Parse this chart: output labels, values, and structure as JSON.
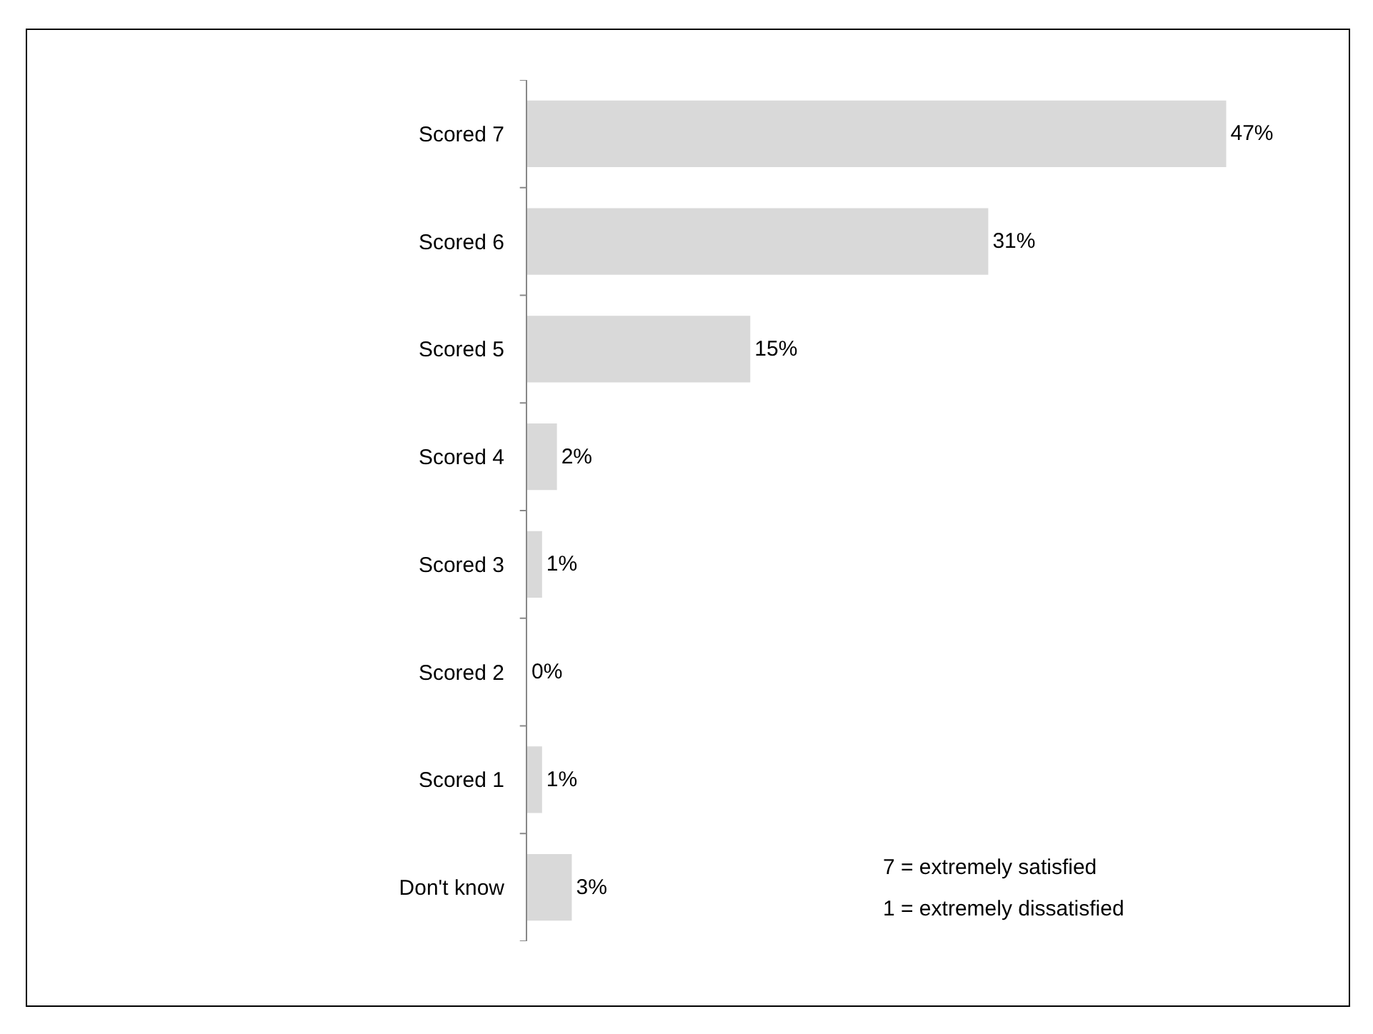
{
  "chart_data": {
    "type": "bar",
    "orientation": "horizontal",
    "categories": [
      "Scored 7",
      "Scored 6",
      "Scored 5",
      "Scored 4",
      "Scored 3",
      "Scored 2",
      "Scored 1",
      "Don't know"
    ],
    "values": [
      47,
      31,
      15,
      2,
      1,
      0,
      1,
      3
    ],
    "value_labels": [
      "47%",
      "31%",
      "15%",
      "2%",
      "1%",
      "0%",
      "1%",
      "3%"
    ],
    "color": "#d9d9d9",
    "annotations": [
      "7 = extremely satisfied",
      "1 = extremely dissatisfied"
    ]
  }
}
